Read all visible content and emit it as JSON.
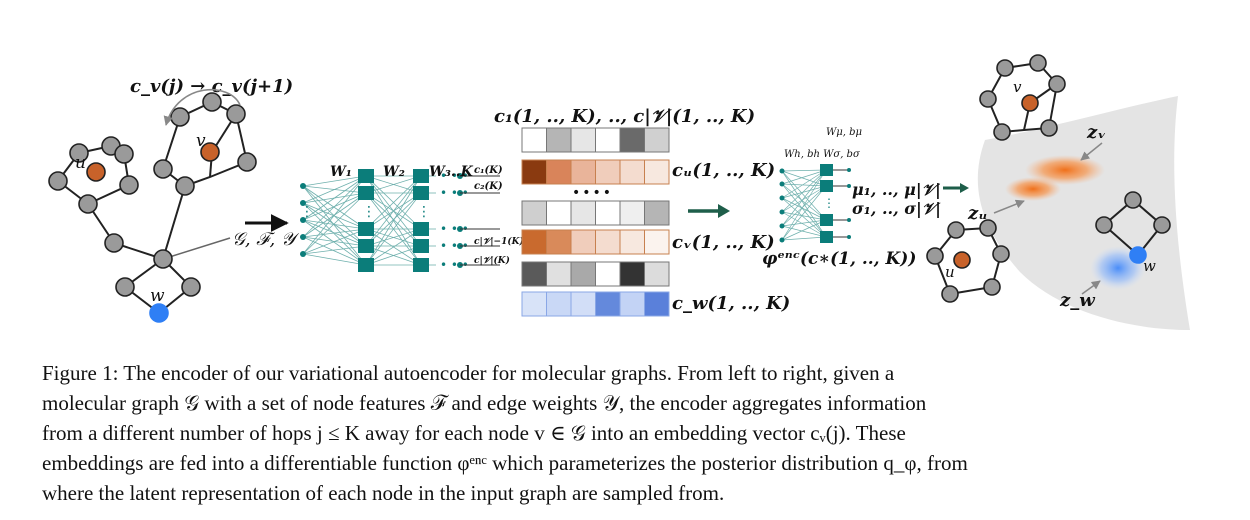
{
  "figure": {
    "labels": {
      "update_rule": "c_v(j) → c_v(j+1)",
      "graph_features": "𝒢, ℱ, 𝒴",
      "node_u": "u",
      "node_v": "v",
      "node_w": "w",
      "weight_1": "W₁",
      "weight_2": "W₂",
      "weight_3k": "W₃..K",
      "c1k": "c₁(K)",
      "c2k": "c₂(K)",
      "cvm1k": "c|𝒱|−1(K)",
      "cvk_out": "c|𝒱|(K)",
      "matrix_title": "c₁(1, .., K), .., c|𝒱|(1, .., K)",
      "row_u": "cᵤ(1, .., K)",
      "row_v": "cᵥ(1, .., K)",
      "row_w": "c_w(1, .., K)",
      "dots": "••••",
      "enc_weights_top": "Wμ, bμ",
      "enc_weights_mid": "Wh, bh  Wσ, bσ",
      "mu_out": "μ₁, .., μ|𝒱|",
      "sigma_out": "σ₁, .., σ|𝒱|",
      "phi_enc": "φᵉⁿᶜ(c∗(1, .., K))",
      "z_v": "zᵥ",
      "z_u": "zᵤ",
      "z_w": "z_w"
    },
    "colors": {
      "node_gray": "#9a9a9a",
      "node_orange": "#c8622a",
      "node_blue": "#2f7ff5",
      "nn_teal": "#0b7d7a",
      "arrow_green": "#1e5e4a",
      "surface": "#e4e4e4"
    }
  },
  "caption": {
    "lines": [
      "Figure 1:  The encoder of our variational autoencoder for molecular graphs.  From left to right, given a",
      "molecular graph 𝒢 with a set of node features ℱ and edge weights 𝒴, the encoder aggregates information",
      "from a different number of hops j ≤ K away for each node v ∈ 𝒢 into an embedding vector cᵥ(j).  These",
      "embeddings are fed into a differentiable function φᵉⁿᶜ which parameterizes the posterior distribution q_φ, from",
      "where the latent representation of each node in the input graph are sampled from."
    ]
  }
}
